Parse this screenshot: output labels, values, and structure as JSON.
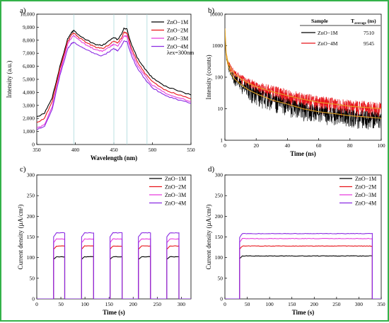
{
  "chart_data": [
    {
      "id": "a",
      "type": "line",
      "panel_label": "a)",
      "xlabel": "Wavelength (nm)",
      "ylabel": "Intensity (a.u.)",
      "xlim": [
        350,
        550
      ],
      "ylim": [
        0,
        10000
      ],
      "xticks": [
        350,
        400,
        450,
        500,
        550
      ],
      "yticks": [
        0,
        1000,
        2000,
        3000,
        4000,
        5000,
        6000,
        7000,
        8000,
        9000,
        10000
      ],
      "ytick_labels": [
        "0",
        "1,000",
        "2,000",
        "3,000",
        "4,000",
        "5,000",
        "6,000",
        "7,000",
        "8,000",
        "9,000",
        "10,000"
      ],
      "annotation": "λex=300nm",
      "vlines": [
        398,
        450,
        467,
        493
      ],
      "x": [
        350,
        360,
        370,
        380,
        390,
        395,
        398,
        405,
        415,
        425,
        435,
        445,
        450,
        455,
        460,
        463,
        467,
        472,
        480,
        490,
        500,
        515,
        530,
        550
      ],
      "series": [
        {
          "name": "ZnO−1M",
          "color": "#000000",
          "values": [
            2100,
            2400,
            3600,
            6000,
            8100,
            8600,
            8750,
            8400,
            8000,
            7700,
            7600,
            8000,
            8200,
            8050,
            8500,
            8900,
            8850,
            7800,
            6700,
            5800,
            5100,
            4500,
            4200,
            3800
          ]
        },
        {
          "name": "ZnO−2M",
          "color": "#e8151b",
          "values": [
            1700,
            2000,
            3300,
            5800,
            7900,
            8400,
            8550,
            8200,
            7800,
            7500,
            7350,
            7700,
            7950,
            7800,
            8200,
            8600,
            8550,
            7500,
            6400,
            5500,
            4800,
            4200,
            3900,
            3500
          ]
        },
        {
          "name": "ZnO−3M",
          "color": "#e83cde",
          "values": [
            1250,
            1500,
            2900,
            5500,
            7700,
            8200,
            8350,
            8000,
            7600,
            7300,
            7150,
            7500,
            7700,
            7550,
            7950,
            8350,
            8300,
            7250,
            6150,
            5300,
            4550,
            4000,
            3650,
            3300
          ]
        },
        {
          "name": "ZnO−4M",
          "color": "#8a2be2",
          "values": [
            1150,
            1400,
            2700,
            5300,
            7350,
            7750,
            7850,
            7600,
            7250,
            6950,
            6800,
            7150,
            7350,
            7200,
            7600,
            7950,
            7900,
            6950,
            5900,
            5050,
            4350,
            3800,
            3500,
            3150
          ]
        }
      ]
    },
    {
      "id": "b",
      "type": "line",
      "panel_label": "b)",
      "xlabel": "Time (ns)",
      "ylabel": "Intensity (counts)",
      "xlim": [
        0,
        100
      ],
      "yscale": "log",
      "ylim": [
        1,
        10000
      ],
      "xticks": [
        0,
        20,
        40,
        60,
        80,
        100
      ],
      "yticks": [
        1,
        10,
        100,
        1000,
        10000
      ],
      "fit_color": "#e3a424",
      "series": [
        {
          "name": "ZnO−1M",
          "color": "#000000",
          "tau": 7510,
          "x": [
            0,
            0.5,
            1,
            2,
            4,
            6,
            10,
            15,
            20,
            30,
            40,
            50,
            60,
            70,
            80,
            90,
            100
          ],
          "values": [
            3500,
            700,
            400,
            230,
            130,
            90,
            60,
            40,
            30,
            19,
            14,
            10,
            8,
            7,
            6,
            5.5,
            5
          ]
        },
        {
          "name": "ZnO−4M",
          "color": "#e8151b",
          "tau": 9545,
          "x": [
            0,
            0.5,
            1,
            2,
            4,
            6,
            10,
            15,
            20,
            30,
            40,
            50,
            60,
            70,
            80,
            90,
            100
          ],
          "values": [
            3500,
            800,
            500,
            300,
            180,
            130,
            90,
            65,
            50,
            35,
            26,
            20,
            16,
            14,
            12,
            11,
            10
          ]
        }
      ],
      "table": {
        "headers": [
          "Sample",
          "Taverage (ns)"
        ],
        "header_main": "T",
        "header_sub": "average",
        "header_tail": " (ns)",
        "rows": [
          {
            "sample": "ZnO−1M",
            "value": "7510"
          },
          {
            "sample": "ZnO−4M",
            "value": "9545"
          }
        ]
      }
    },
    {
      "id": "c",
      "type": "line",
      "panel_label": "c)",
      "xlabel": "Time (s)",
      "ylabel": "Current density (µA/cm²)",
      "xlim": [
        0,
        320
      ],
      "ylim": [
        0,
        300
      ],
      "xticks": [
        0,
        50,
        100,
        150,
        200,
        250,
        300
      ],
      "yticks": [
        0,
        50,
        100,
        150,
        200,
        250,
        300
      ],
      "on_intervals": [
        [
          35,
          58
        ],
        [
          93,
          118
        ],
        [
          152,
          177
        ],
        [
          211,
          236
        ],
        [
          270,
          295
        ]
      ],
      "series": [
        {
          "name": "ZnO−1M",
          "color": "#000000",
          "on_value": 102
        },
        {
          "name": "ZnO−2M",
          "color": "#e8151b",
          "on_value": 128
        },
        {
          "name": "ZnO−3M",
          "color": "#e83cde",
          "on_value": 145
        },
        {
          "name": "ZnO−4M",
          "color": "#8a2be2",
          "on_value": 160
        }
      ]
    },
    {
      "id": "d",
      "type": "line",
      "panel_label": "d)",
      "xlabel": "Time (s)",
      "ylabel": "Current density (µA/cm²)",
      "xlim": [
        0,
        350
      ],
      "ylim": [
        0,
        300
      ],
      "xticks": [
        0,
        50,
        100,
        150,
        200,
        250,
        300,
        350
      ],
      "yticks": [
        0,
        50,
        100,
        150,
        200,
        250,
        300
      ],
      "on_intervals": [
        [
          33,
          330
        ]
      ],
      "series": [
        {
          "name": "ZnO−1M",
          "color": "#000000",
          "on_value": 104
        },
        {
          "name": "ZnO−2M",
          "color": "#e8151b",
          "on_value": 128
        },
        {
          "name": "ZnO−3M",
          "color": "#e83cde",
          "on_value": 146
        },
        {
          "name": "ZnO−4M",
          "color": "#8a2be2",
          "on_value": 158
        }
      ]
    }
  ]
}
